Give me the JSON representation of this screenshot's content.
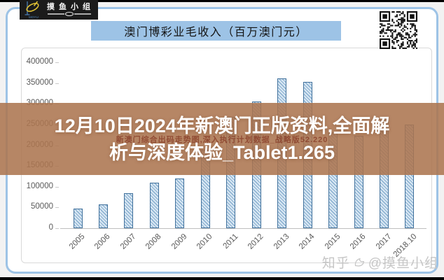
{
  "colors": {
    "card_border": "#9dc3e6",
    "title_bg": "#9dc3e6",
    "bar_fill": "#d9e7f3",
    "bar_hatch": "#86aecf",
    "bar_border": "#41719c",
    "band": "rgba(172,117,80,0.88)",
    "axis_text": "#595959"
  },
  "logo": {
    "brand_chars": "摸鱼小组",
    "sub_label": "MOYU"
  },
  "title_bar": {
    "text": "澳门博彩业毛收入（百万澳门元）"
  },
  "overlay": {
    "line1": "12月10日2024年新澳门正版资料,全面解",
    "line2": "析与深度体验_Tablet1.265",
    "faint_text": "新澳门综合出码走势图,深入执行计划数据_战略版52.220"
  },
  "watermark": {
    "prefix": "知乎",
    "handle": "@摸鱼小组"
  },
  "chart_data": {
    "type": "bar",
    "title": "澳门博彩业毛收入（百万澳门元）",
    "xlabel": "",
    "ylabel": "",
    "categories": [
      "2005",
      "2006",
      "2007",
      "2008",
      "2009",
      "2010",
      "2011",
      "2012",
      "2013",
      "2014",
      "2015",
      "2016",
      "2017",
      "2018.10"
    ],
    "values": [
      47100,
      57500,
      83800,
      109800,
      120400,
      188300,
      269100,
      305200,
      361900,
      352700,
      230800,
      223200,
      265700,
      250500
    ],
    "ylim": [
      0,
      400000
    ],
    "ytick_step": 50000,
    "ytick_labels": [
      "400000",
      "350000",
      "300000",
      "250000",
      "200000",
      "150000",
      "100000",
      "50000",
      "0"
    ],
    "grid": false,
    "legend": null,
    "bar_style": "diagonal-hatch"
  }
}
